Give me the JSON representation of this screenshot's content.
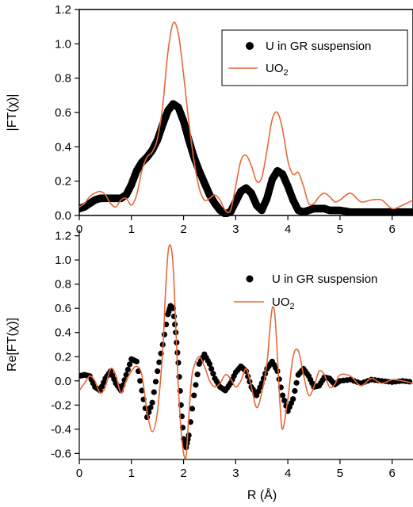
{
  "colors": {
    "uo2_line": "#e8683a",
    "marker": "#000000",
    "axis": "#000000",
    "background": "#ffffff"
  },
  "chart_data": [
    {
      "type": "line",
      "panel": "top",
      "xlabel": "",
      "ylabel": "|FT(χ)|",
      "xlim": [
        0,
        6.4
      ],
      "ylim": [
        0,
        1.2
      ],
      "xticks": [
        "0",
        "1",
        "2",
        "3",
        "4",
        "5",
        "6"
      ],
      "yticks": [
        "0.0",
        "0.2",
        "0.4",
        "0.6",
        "0.8",
        "1.0",
        "1.2"
      ],
      "legend_position": "top-right",
      "series": [
        {
          "name": "U in GR suspension",
          "style": "markers",
          "x": [
            0.0,
            0.1,
            0.2,
            0.3,
            0.4,
            0.5,
            0.6,
            0.7,
            0.8,
            0.9,
            1.0,
            1.1,
            1.2,
            1.3,
            1.4,
            1.5,
            1.6,
            1.7,
            1.8,
            1.9,
            2.0,
            2.1,
            2.2,
            2.3,
            2.4,
            2.5,
            2.6,
            2.7,
            2.8,
            2.9,
            3.0,
            3.1,
            3.2,
            3.3,
            3.4,
            3.5,
            3.6,
            3.7,
            3.8,
            3.9,
            4.0,
            4.1,
            4.2,
            4.3,
            4.4,
            4.5,
            4.6,
            4.7,
            4.8,
            4.9,
            5.0,
            5.2,
            5.4,
            5.6,
            5.8,
            6.0,
            6.2,
            6.4
          ],
          "y": [
            0.04,
            0.05,
            0.07,
            0.09,
            0.1,
            0.1,
            0.1,
            0.1,
            0.1,
            0.12,
            0.18,
            0.26,
            0.31,
            0.34,
            0.38,
            0.44,
            0.53,
            0.61,
            0.65,
            0.63,
            0.55,
            0.44,
            0.34,
            0.26,
            0.19,
            0.12,
            0.07,
            0.03,
            0.01,
            0.02,
            0.08,
            0.14,
            0.16,
            0.13,
            0.06,
            0.03,
            0.1,
            0.21,
            0.26,
            0.24,
            0.17,
            0.09,
            0.03,
            0.02,
            0.03,
            0.04,
            0.04,
            0.04,
            0.03,
            0.03,
            0.03,
            0.02,
            0.02,
            0.02,
            0.02,
            0.02,
            0.02,
            0.02
          ]
        },
        {
          "name": "UO2",
          "style": "line",
          "x": [
            0.0,
            0.1,
            0.2,
            0.3,
            0.4,
            0.5,
            0.6,
            0.7,
            0.8,
            0.9,
            1.0,
            1.1,
            1.2,
            1.3,
            1.4,
            1.5,
            1.6,
            1.7,
            1.8,
            1.9,
            2.0,
            2.1,
            2.2,
            2.3,
            2.4,
            2.5,
            2.6,
            2.7,
            2.8,
            2.9,
            3.0,
            3.1,
            3.2,
            3.3,
            3.4,
            3.5,
            3.6,
            3.7,
            3.8,
            3.9,
            4.0,
            4.1,
            4.2,
            4.3,
            4.4,
            4.5,
            4.6,
            4.7,
            4.8,
            4.9,
            5.0,
            5.2,
            5.4,
            5.6,
            5.8,
            6.0,
            6.2,
            6.4
          ],
          "y": [
            0.05,
            0.07,
            0.11,
            0.13,
            0.14,
            0.12,
            0.07,
            0.05,
            0.09,
            0.1,
            0.06,
            0.12,
            0.26,
            0.34,
            0.37,
            0.45,
            0.64,
            0.95,
            1.12,
            1.06,
            0.82,
            0.55,
            0.32,
            0.16,
            0.09,
            0.1,
            0.12,
            0.09,
            0.03,
            0.03,
            0.17,
            0.32,
            0.35,
            0.29,
            0.2,
            0.22,
            0.38,
            0.56,
            0.6,
            0.5,
            0.32,
            0.24,
            0.25,
            0.17,
            0.07,
            0.07,
            0.11,
            0.13,
            0.11,
            0.08,
            0.09,
            0.13,
            0.08,
            0.09,
            0.09,
            0.04,
            0.06,
            0.09
          ]
        }
      ]
    },
    {
      "type": "line",
      "panel": "bottom",
      "xlabel": "R (Å)",
      "ylabel": "Re[FT(χ)]",
      "xlim": [
        0,
        6.4
      ],
      "ylim": [
        -0.65,
        1.25
      ],
      "xticks": [
        "0",
        "1",
        "2",
        "3",
        "4",
        "5",
        "6"
      ],
      "yticks": [
        "-0.6",
        "-0.4",
        "-0.2",
        "0.0",
        "0.2",
        "0.4",
        "0.6",
        "0.8",
        "1.0",
        "1.2"
      ],
      "legend_position": "top-right",
      "series": [
        {
          "name": "U in GR suspension",
          "style": "markers",
          "x": [
            0.0,
            0.1,
            0.2,
            0.3,
            0.4,
            0.5,
            0.6,
            0.7,
            0.8,
            0.9,
            1.0,
            1.1,
            1.2,
            1.3,
            1.4,
            1.5,
            1.6,
            1.7,
            1.75,
            1.8,
            1.85,
            1.9,
            1.95,
            2.0,
            2.05,
            2.1,
            2.2,
            2.3,
            2.4,
            2.5,
            2.6,
            2.7,
            2.8,
            2.9,
            3.0,
            3.1,
            3.2,
            3.3,
            3.4,
            3.5,
            3.6,
            3.7,
            3.8,
            3.9,
            4.0,
            4.1,
            4.2,
            4.3,
            4.4,
            4.5,
            4.6,
            4.7,
            4.8,
            4.9,
            5.0,
            5.2,
            5.4,
            5.6,
            5.8,
            6.0,
            6.2,
            6.4
          ],
          "y": [
            0.04,
            0.05,
            0.04,
            -0.05,
            -0.08,
            0.02,
            0.08,
            -0.02,
            -0.08,
            0.05,
            0.18,
            0.16,
            -0.08,
            -0.3,
            -0.18,
            0.08,
            0.3,
            0.55,
            0.62,
            0.6,
            0.4,
            0.15,
            -0.2,
            -0.48,
            -0.55,
            -0.45,
            -0.12,
            0.14,
            0.22,
            0.14,
            0.02,
            -0.05,
            -0.08,
            -0.02,
            0.07,
            0.12,
            0.08,
            -0.05,
            -0.12,
            -0.02,
            0.1,
            0.16,
            0.08,
            -0.12,
            -0.25,
            -0.15,
            0.05,
            0.1,
            0.04,
            -0.05,
            -0.04,
            0.03,
            0.02,
            -0.03,
            0.0,
            0.01,
            -0.02,
            0.01,
            0.0,
            -0.01,
            0.0,
            -0.01
          ]
        },
        {
          "name": "UO2",
          "style": "line",
          "x": [
            0.0,
            0.1,
            0.2,
            0.3,
            0.4,
            0.5,
            0.6,
            0.7,
            0.8,
            0.9,
            1.0,
            1.1,
            1.2,
            1.3,
            1.4,
            1.5,
            1.6,
            1.65,
            1.7,
            1.75,
            1.8,
            1.85,
            1.9,
            1.95,
            2.0,
            2.05,
            2.1,
            2.15,
            2.2,
            2.3,
            2.4,
            2.5,
            2.6,
            2.7,
            2.8,
            2.9,
            3.0,
            3.1,
            3.2,
            3.3,
            3.4,
            3.5,
            3.6,
            3.65,
            3.7,
            3.75,
            3.8,
            3.85,
            3.9,
            4.0,
            4.1,
            4.2,
            4.3,
            4.4,
            4.5,
            4.6,
            4.7,
            4.8,
            4.9,
            5.0,
            5.2,
            5.4,
            5.6,
            5.8,
            6.0,
            6.2,
            6.4
          ],
          "y": [
            -0.08,
            -0.02,
            0.04,
            0.0,
            -0.1,
            -0.05,
            0.1,
            0.05,
            -0.1,
            0.0,
            0.08,
            0.12,
            0.05,
            -0.25,
            -0.42,
            -0.25,
            0.25,
            0.7,
            1.05,
            1.12,
            0.95,
            0.45,
            -0.05,
            -0.4,
            -0.6,
            -0.62,
            -0.3,
            0.0,
            0.12,
            0.2,
            0.12,
            0.0,
            -0.05,
            -0.02,
            0.05,
            0.02,
            -0.05,
            0.0,
            0.1,
            -0.05,
            -0.22,
            -0.1,
            0.15,
            0.4,
            0.6,
            0.55,
            0.2,
            -0.2,
            -0.4,
            -0.15,
            0.2,
            0.25,
            0.05,
            -0.12,
            -0.05,
            0.08,
            0.05,
            -0.05,
            -0.03,
            0.05,
            0.04,
            -0.04,
            0.02,
            -0.02,
            0.01,
            0.0,
            -0.02
          ]
        }
      ]
    }
  ]
}
